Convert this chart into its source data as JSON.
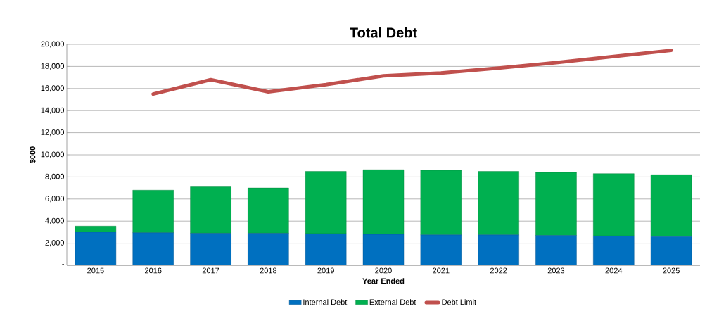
{
  "chart_data": {
    "type": "bar",
    "stacked": true,
    "title": "Total Debt",
    "xlabel": "Year Ended",
    "ylabel": "$000",
    "categories": [
      "2015",
      "2016",
      "2017",
      "2018",
      "2019",
      "2020",
      "2021",
      "2022",
      "2023",
      "2024",
      "2025"
    ],
    "series": [
      {
        "name": "Internal Debt",
        "color": "#0070c0",
        "values": [
          3000,
          2950,
          2900,
          2900,
          2850,
          2800,
          2750,
          2750,
          2700,
          2650,
          2600
        ]
      },
      {
        "name": "External Debt",
        "color": "#00b050",
        "values": [
          550,
          3850,
          4200,
          4100,
          5650,
          5850,
          5850,
          5750,
          5700,
          5650,
          5600
        ]
      },
      {
        "name": "Debt Limit",
        "type": "line",
        "color": "#c0504d",
        "values": [
          null,
          15500,
          16800,
          15700,
          16350,
          17150,
          17400,
          17850,
          18350,
          18900,
          19450
        ]
      }
    ],
    "ylim": [
      0,
      20000
    ],
    "yticks": [
      {
        "value": 0,
        "label": "-"
      },
      {
        "value": 2000,
        "label": "2,000"
      },
      {
        "value": 4000,
        "label": "4,000"
      },
      {
        "value": 6000,
        "label": "6,000"
      },
      {
        "value": 8000,
        "label": "8,000"
      },
      {
        "value": 10000,
        "label": "10,000"
      },
      {
        "value": 12000,
        "label": "12,000"
      },
      {
        "value": 14000,
        "label": "14,000"
      },
      {
        "value": 16000,
        "label": "16,000"
      },
      {
        "value": 18000,
        "label": "18,000"
      },
      {
        "value": 20000,
        "label": "20,000"
      }
    ],
    "grid": "y",
    "legend": "bottom"
  }
}
